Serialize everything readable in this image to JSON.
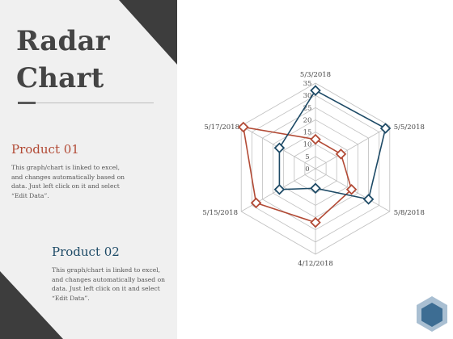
{
  "slide": {
    "title": "Radar\nChart",
    "products": [
      {
        "name": "Product 01",
        "color": "#b24a35",
        "description": "This graph/chart is linked to excel, and changes automatically based on data. Just left click on it and select “Edit Data”."
      },
      {
        "name": "Product 02",
        "color": "#1d4a66",
        "description": "This graph/chart is linked to excel, and changes automatically based on data. Just left click on it and select “Edit Data”."
      }
    ]
  },
  "chart_data": {
    "type": "radar",
    "categories": [
      "5/3/2018",
      "5/5/2018",
      "5/8/2018",
      "4/12/2018",
      "5/15/2018",
      "5/17/2018"
    ],
    "ticks": [
      0,
      5,
      10,
      15,
      20,
      25,
      30,
      35
    ],
    "rlim": [
      0,
      35
    ],
    "grid": true,
    "legend": "none",
    "series": [
      {
        "color": "#b24a35",
        "values": [
          12,
          12,
          17,
          22,
          28,
          34
        ]
      },
      {
        "color": "#1d4a66",
        "values": [
          32,
          33,
          25,
          8,
          17,
          17
        ]
      }
    ]
  }
}
